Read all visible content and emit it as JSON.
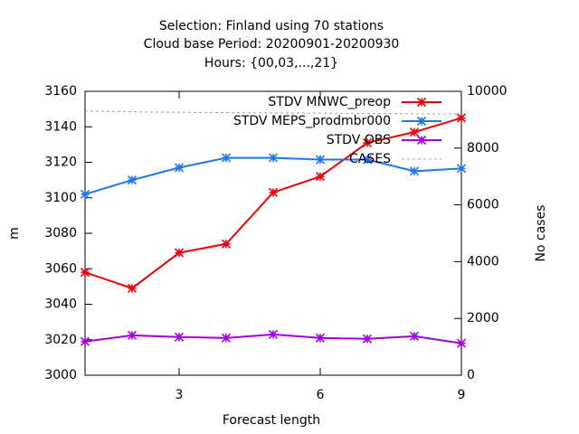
{
  "title_lines": [
    "Selection: Finland using     70 stations",
    "Cloud base   Period: 20200901-20200930",
    "Hours: {00,03,...,21}"
  ],
  "chart_data": {
    "type": "line",
    "xlabel": "Forecast length",
    "ylabel_left": "m",
    "ylabel_right": "No cases",
    "xlim": [
      1,
      9
    ],
    "ylim_left": [
      3000,
      3160
    ],
    "ylim_right": [
      0,
      10000
    ],
    "x_ticks": [
      3,
      6,
      9
    ],
    "y_ticks_left": [
      3000,
      3020,
      3040,
      3060,
      3080,
      3100,
      3120,
      3140,
      3160
    ],
    "y_ticks_right": [
      0,
      2000,
      4000,
      6000,
      8000,
      10000
    ],
    "grid": false,
    "legend_position": "top-right",
    "x": [
      1,
      2,
      3,
      4,
      5,
      6,
      7,
      8,
      9
    ],
    "series": [
      {
        "name": "STDV MNWC_preop",
        "axis": "left",
        "color": "#e8000b",
        "marker": "x",
        "values": [
          3058,
          3049,
          3069,
          3074,
          3103,
          3112,
          3131,
          3137,
          3145
        ]
      },
      {
        "name": "STDV MEPS_prodmbr000",
        "axis": "left",
        "color": "#1f77e8",
        "marker": "x",
        "values": [
          3102,
          3110,
          3117,
          3122.5,
          3122.5,
          3121.5,
          3121.5,
          3115,
          3116.5
        ]
      },
      {
        "name": "STDV OBS",
        "axis": "left",
        "color": "#a000e0",
        "marker": "x",
        "values": [
          3019,
          3022.5,
          3021.5,
          3021,
          3023,
          3021,
          3020.5,
          3022,
          3018
        ]
      },
      {
        "name": "CASES",
        "axis": "right",
        "color": "#a0a0a0",
        "marker": "none",
        "dashed": true,
        "values": [
          9300,
          9280,
          9260,
          9250,
          9240,
          9230,
          9220,
          9210,
          9200
        ]
      }
    ]
  }
}
